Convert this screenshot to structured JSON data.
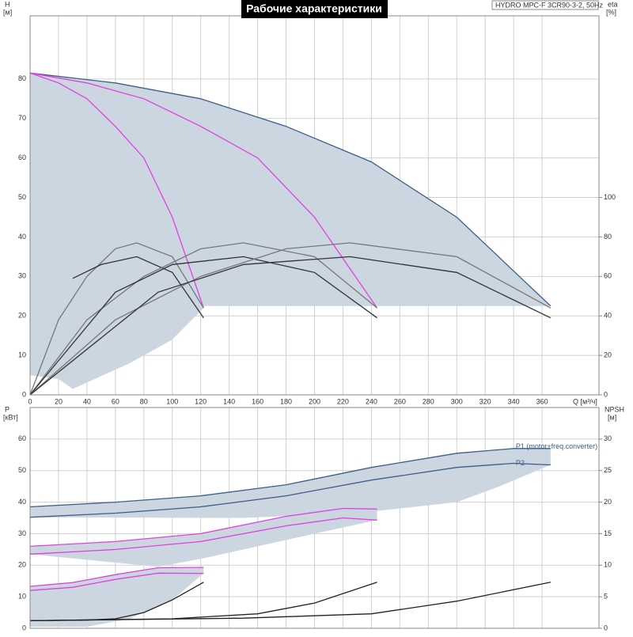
{
  "chart_data": [
    {
      "type": "line",
      "title": "Рабочие характеристики",
      "model": "HYDRO MPC-F 3CR90-3-2, 50Hz",
      "ylabel": "H",
      "yunit": "[м]",
      "y2label": "eta",
      "y2unit": "[%]",
      "xlabel": "Q [м³/ч]",
      "xlim": [
        0,
        400
      ],
      "xticks": [
        0,
        20,
        40,
        60,
        80,
        100,
        120,
        140,
        160,
        180,
        200,
        220,
        240,
        260,
        280,
        300,
        320,
        340,
        360
      ],
      "ylim": [
        0,
        96
      ],
      "yticks": [
        0,
        10,
        20,
        30,
        40,
        50,
        60,
        70,
        80
      ],
      "y2lim": [
        0,
        192
      ],
      "y2ticks": [
        0,
        20,
        40,
        60,
        80,
        100
      ],
      "grid": true,
      "series": [
        {
          "style": "area",
          "color": "#ccd6e0",
          "x": [
            0,
            60,
            120,
            180,
            240,
            300,
            366,
            366,
            122,
            122,
            100,
            70,
            30,
            20,
            0
          ],
          "values": [
            81.5,
            79,
            75,
            68,
            59,
            45,
            22.5,
            22.5,
            22.5,
            22,
            14,
            8,
            1.5,
            4,
            5
          ]
        },
        {
          "style": "line",
          "color": "#3a5f8a",
          "x": [
            0,
            60,
            120,
            180,
            240,
            300,
            366
          ],
          "values": [
            81.5,
            79,
            75,
            68,
            59,
            45,
            22.5
          ]
        },
        {
          "style": "line",
          "color": "#e040e0",
          "x": [
            0,
            20,
            40,
            60,
            80,
            100,
            122
          ],
          "values": [
            81.5,
            79,
            75,
            68,
            60,
            45,
            22
          ]
        },
        {
          "style": "line",
          "color": "#e040e0",
          "x": [
            0,
            40,
            80,
            120,
            160,
            200,
            244
          ],
          "values": [
            81.5,
            79,
            75,
            68,
            60,
            45,
            22
          ]
        },
        {
          "style": "line",
          "color": "#777777",
          "axis": "y2",
          "x": [
            0,
            20,
            40,
            60,
            75,
            100,
            122
          ],
          "values": [
            0,
            38,
            60,
            74,
            77,
            70,
            44
          ]
        },
        {
          "style": "line",
          "color": "#333333",
          "axis": "y2",
          "x": [
            30,
            50,
            75,
            100,
            122
          ],
          "values": [
            59,
            66,
            70,
            62,
            39
          ]
        },
        {
          "style": "line",
          "color": "#777777",
          "axis": "y2",
          "x": [
            0,
            40,
            80,
            120,
            150,
            200,
            244
          ],
          "values": [
            0,
            38,
            60,
            74,
            77,
            70,
            44
          ]
        },
        {
          "style": "line",
          "color": "#333333",
          "axis": "y2",
          "x": [
            0,
            60,
            100,
            150,
            200,
            244
          ],
          "values": [
            0,
            52,
            66,
            70,
            62,
            39
          ]
        },
        {
          "style": "line",
          "color": "#777777",
          "axis": "y2",
          "x": [
            0,
            60,
            120,
            180,
            225,
            300,
            366
          ],
          "values": [
            0,
            38,
            60,
            74,
            77,
            70,
            44
          ]
        },
        {
          "style": "line",
          "color": "#333333",
          "axis": "y2",
          "x": [
            0,
            90,
            150,
            225,
            300,
            366
          ],
          "values": [
            0,
            52,
            66,
            70,
            62,
            39
          ]
        }
      ]
    },
    {
      "type": "line",
      "ylabel": "P",
      "yunit": "[кВт]",
      "y2label": "NPSH",
      "y2unit": "[м]",
      "xlim": [
        0,
        400
      ],
      "ylim": [
        0,
        70
      ],
      "yticks": [
        0,
        10,
        20,
        30,
        40,
        50,
        60
      ],
      "y2lim": [
        0,
        35
      ],
      "y2ticks": [
        0,
        5,
        10,
        15,
        20,
        25,
        30
      ],
      "grid": true,
      "series": [
        {
          "style": "area",
          "color": "#ccd6e0",
          "x": [
            0,
            60,
            120,
            180,
            240,
            300,
            340,
            366,
            366,
            330,
            300,
            240,
            200,
            150,
            0
          ],
          "values": [
            38.5,
            40,
            42,
            45.5,
            51,
            55.5,
            57,
            57,
            51.8,
            45,
            40,
            37,
            36,
            35,
            35.2
          ]
        },
        {
          "style": "area",
          "color": "#ccd6e0",
          "x": [
            0,
            60,
            120,
            180,
            220,
            244,
            244,
            200,
            160,
            120,
            90,
            0
          ],
          "values": [
            26,
            27.5,
            30,
            35.5,
            38,
            37.8,
            34.3,
            30,
            26,
            22,
            19.5,
            23.5
          ]
        },
        {
          "style": "area",
          "color": "#ccd6e0",
          "x": [
            0,
            30,
            60,
            90,
            122,
            122,
            100,
            70,
            40,
            0
          ],
          "values": [
            13.3,
            14.5,
            17,
            19.2,
            19.3,
            17.4,
            9,
            3,
            0.5,
            0.5
          ]
        },
        {
          "style": "line",
          "name": "P1 (motor+freq.converter)",
          "color": "#3a5f8a",
          "x": [
            0,
            60,
            120,
            180,
            240,
            300,
            340,
            366
          ],
          "values": [
            38.5,
            40,
            42,
            45.5,
            51,
            55.5,
            57,
            57
          ]
        },
        {
          "style": "line",
          "name": "P2",
          "color": "#3a5f8a",
          "x": [
            0,
            60,
            120,
            180,
            240,
            300,
            340,
            366
          ],
          "values": [
            35.2,
            36.5,
            38.5,
            42,
            47,
            51,
            52.3,
            51.8
          ]
        },
        {
          "style": "line",
          "color": "#e040e0",
          "x": [
            0,
            60,
            120,
            180,
            220,
            244
          ],
          "values": [
            26,
            27.5,
            30,
            35.5,
            38,
            37.8
          ]
        },
        {
          "style": "line",
          "color": "#e040e0",
          "x": [
            0,
            60,
            120,
            180,
            220,
            244
          ],
          "values": [
            23.5,
            25,
            27.5,
            32.5,
            35,
            34.3
          ]
        },
        {
          "style": "line",
          "color": "#e040e0",
          "x": [
            0,
            30,
            60,
            90,
            122
          ],
          "values": [
            13.3,
            14.5,
            17,
            19.2,
            19.3
          ]
        },
        {
          "style": "line",
          "color": "#e040e0",
          "x": [
            0,
            30,
            60,
            90,
            122
          ],
          "values": [
            12,
            13,
            15.5,
            17.5,
            17.4
          ]
        },
        {
          "style": "line",
          "color": "#222222",
          "axis": "y2",
          "x": [
            0,
            40,
            60,
            80,
            100,
            122
          ],
          "values": [
            1.2,
            1.3,
            1.5,
            2.5,
            4.5,
            7.3
          ]
        },
        {
          "style": "line",
          "color": "#222222",
          "axis": "y2",
          "x": [
            0,
            100,
            160,
            200,
            244
          ],
          "values": [
            1.2,
            1.5,
            2.3,
            4,
            7.3
          ]
        },
        {
          "style": "line",
          "color": "#222222",
          "axis": "y2",
          "x": [
            0,
            150,
            240,
            300,
            366
          ],
          "values": [
            1.2,
            1.6,
            2.3,
            4.3,
            7.3
          ]
        }
      ]
    }
  ]
}
